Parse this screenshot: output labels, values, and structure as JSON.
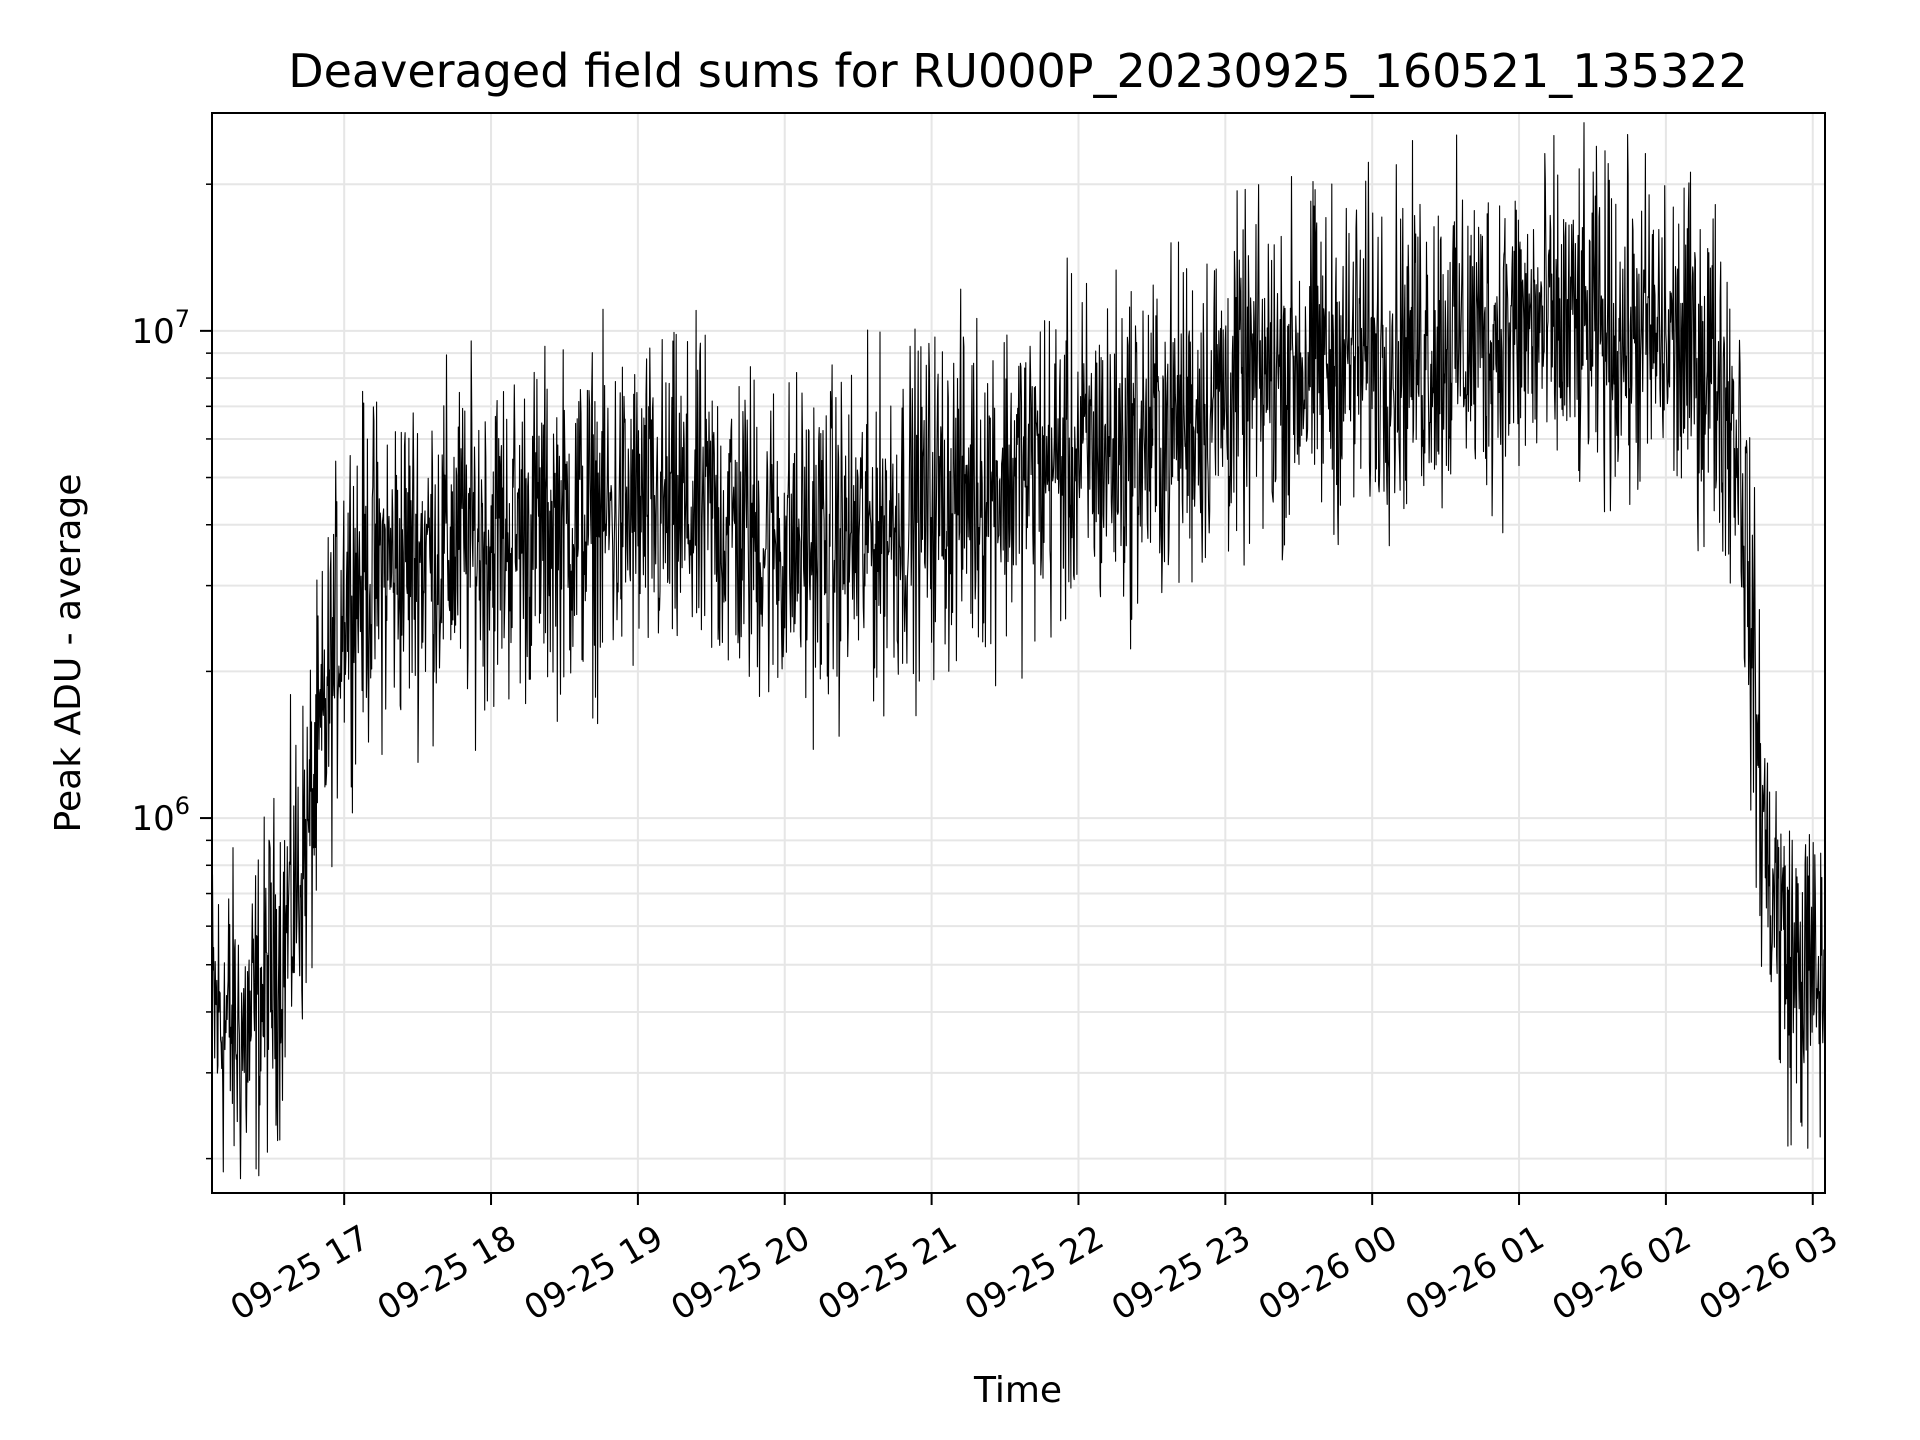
{
  "chart_data": {
    "type": "line",
    "title": "Deaveraged field sums for RU000P_20230925_160521_135322",
    "xlabel": "Time",
    "ylabel": "Peak ADU - average",
    "yscale": "log",
    "ylim": [
      170000,
      28000000
    ],
    "xlim": [
      "2023-09-25 16:06",
      "2023-09-26 03:05"
    ],
    "x_ticks": [
      "09-25 17",
      "09-25 18",
      "09-25 19",
      "09-25 20",
      "09-25 21",
      "09-25 22",
      "09-25 23",
      "09-26 00",
      "09-26 01",
      "09-26 02",
      "09-26 03"
    ],
    "y_ticks": [
      {
        "base": "10",
        "exp": "6"
      },
      {
        "base": "10",
        "exp": "7"
      }
    ],
    "grid": true,
    "legend": "none",
    "line_color": "#000000",
    "grid_color": "#e6e6e6",
    "series": [
      {
        "x": [
          "2023-09-25 16:06",
          "2023-09-25 16:20",
          "2023-09-25 16:35",
          "2023-09-25 16:45",
          "2023-09-25 16:55",
          "2023-09-25 17:00",
          "2023-09-25 17:30",
          "2023-09-25 18:00",
          "2023-09-25 18:30",
          "2023-09-25 19:00",
          "2023-09-25 19:30",
          "2023-09-25 20:00",
          "2023-09-25 20:30",
          "2023-09-25 21:00",
          "2023-09-25 21:30",
          "2023-09-25 22:00",
          "2023-09-25 22:30",
          "2023-09-25 23:00",
          "2023-09-25 23:30",
          "2023-09-26 00:00",
          "2023-09-26 00:30",
          "2023-09-26 01:00",
          "2023-09-26 01:30",
          "2023-09-26 02:00",
          "2023-09-26 02:20",
          "2023-09-26 02:30",
          "2023-09-26 02:40",
          "2023-09-26 02:50",
          "2023-09-26 03:05"
        ],
        "values": [
          400000,
          350000,
          550000,
          900000,
          2000000,
          3000000,
          3500000,
          3800000,
          4000000,
          4200000,
          4200000,
          3600000,
          3700000,
          4500000,
          5000000,
          5500000,
          6000000,
          7500000,
          8500000,
          9000000,
          9500000,
          10000000,
          10000000,
          9500000,
          8500000,
          6000000,
          900000,
          500000,
          450000
        ]
      }
    ]
  }
}
